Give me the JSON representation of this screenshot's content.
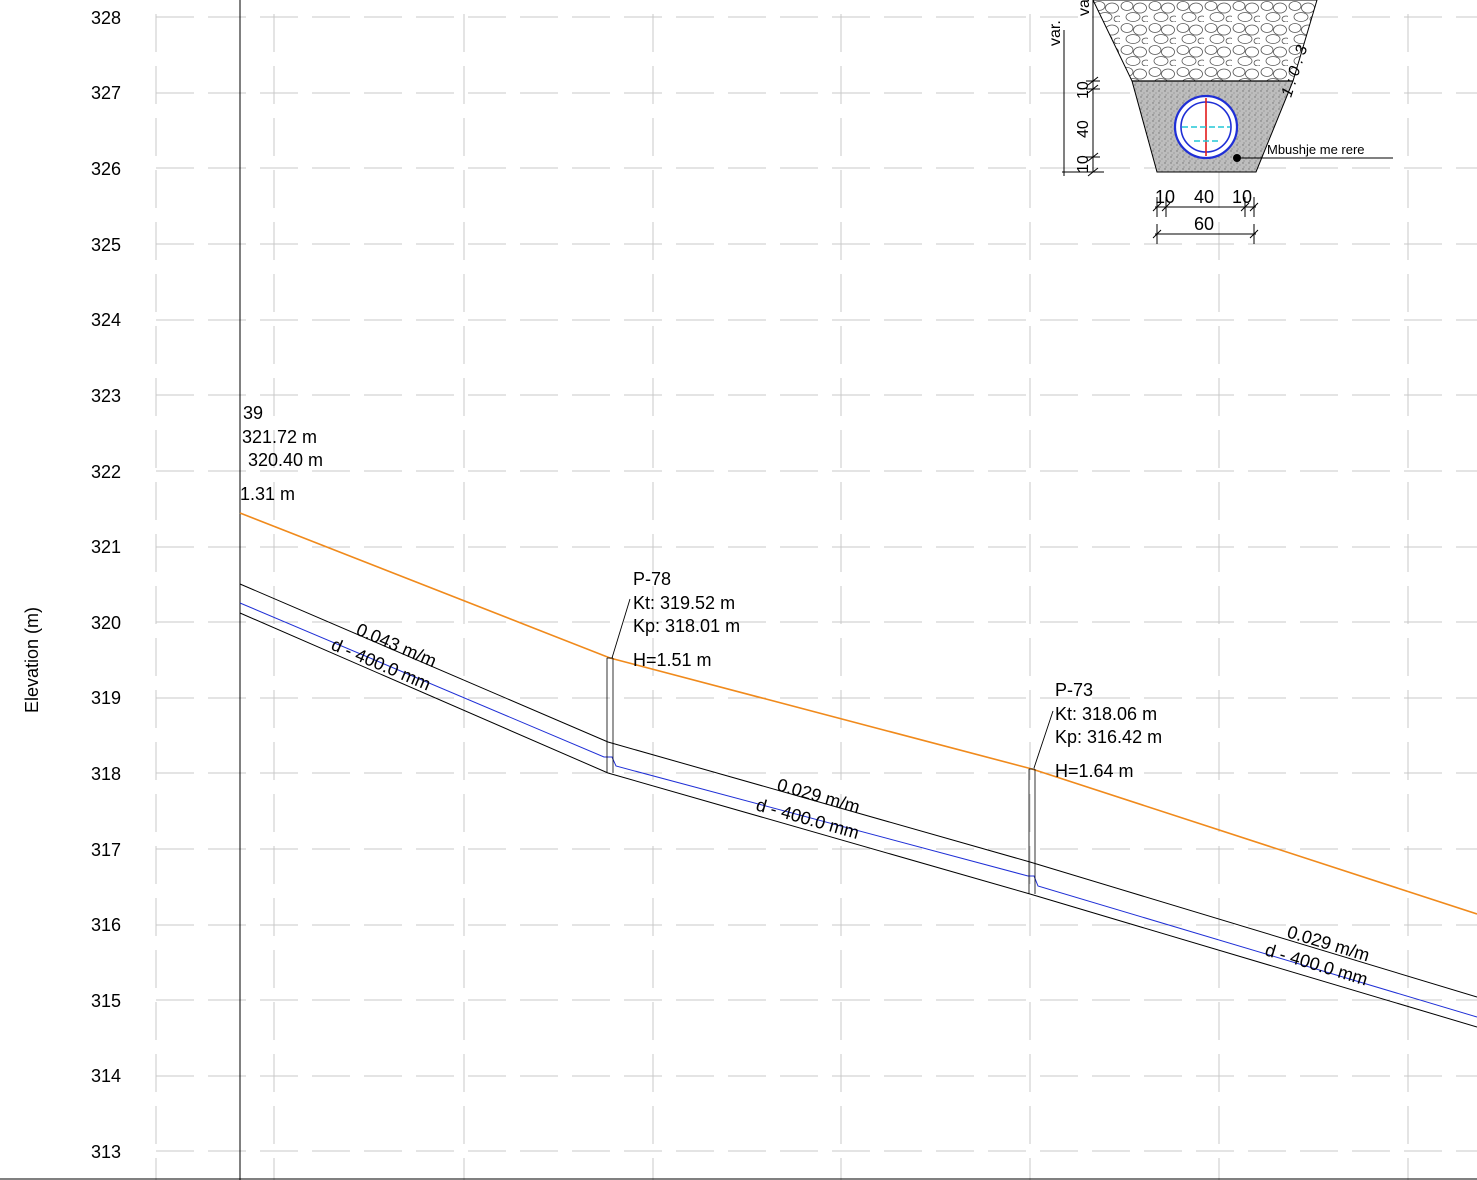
{
  "profile": {
    "y_axis_label": "Elevation (m)",
    "y_ticks": [
      328,
      327,
      326,
      325,
      324,
      323,
      322,
      321,
      320,
      319,
      318,
      317,
      316,
      315,
      314,
      313
    ]
  },
  "manholes": [
    {
      "name": "39",
      "kt": "321.72 m",
      "kp": "320.40 m",
      "h": "1.31 m"
    },
    {
      "name": "P-78",
      "kt": "Kt: 319.52 m",
      "kp": "Kp: 318.01 m",
      "h": "H=1.51 m"
    },
    {
      "name": "P-73",
      "kt": "Kt: 318.06 m",
      "kp": "Kp: 316.42 m",
      "h": "H=1.64 m"
    }
  ],
  "segments": [
    {
      "slope": "0.043 m/m",
      "diameter": "d - 400.0 mm"
    },
    {
      "slope": "0.029 m/m",
      "diameter": "d - 400.0 mm"
    },
    {
      "slope": "0.029 m/m",
      "diameter": "d - 400.0 mm"
    }
  ],
  "cross_section": {
    "fill_label": "Mbushje me rere",
    "var_labels": [
      "var.",
      "var."
    ],
    "slope_label": "1 : 0 . 3",
    "vertical_dims": [
      "10",
      "40",
      "10"
    ],
    "bottom_dims": [
      "10",
      "40",
      "10"
    ],
    "bottom_total": "60"
  },
  "colors": {
    "ground_line": "#f08a1c",
    "pipe_axis": "#1f2fd6",
    "pipe_walls": "#000000",
    "pipe_centerline": "#e21b1b",
    "pipe_crosshair": "#22c7d6"
  }
}
